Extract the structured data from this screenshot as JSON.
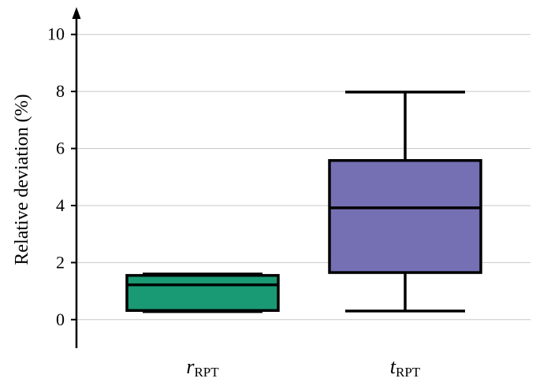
{
  "chart_data": {
    "type": "box",
    "ylabel": "Relative deviation (%)",
    "ylim": [
      -1,
      10.6
    ],
    "yticks": [
      0,
      2,
      4,
      6,
      8,
      10
    ],
    "grid": true,
    "categories": [
      {
        "main": "r",
        "sub": "RPT"
      },
      {
        "main": "t",
        "sub": "RPT"
      }
    ],
    "boxes": [
      {
        "name": "r_RPT",
        "whisker_low": 0.28,
        "q1": 0.32,
        "median": 1.22,
        "q3": 1.55,
        "whisker_high": 1.6,
        "color": "#1a9a74"
      },
      {
        "name": "t_RPT",
        "whisker_low": 0.3,
        "q1": 1.65,
        "median": 3.92,
        "q3": 5.58,
        "whisker_high": 7.98,
        "color": "#7570b3"
      }
    ]
  }
}
